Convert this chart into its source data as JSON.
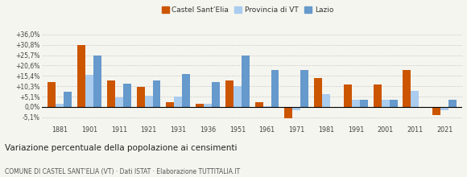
{
  "years": [
    "1881",
    "1901",
    "1911",
    "1921",
    "1931",
    "1936",
    "1951",
    "1961",
    "1971",
    "1981",
    "1991",
    "2001",
    "2011",
    "2021"
  ],
  "castel": [
    12.5,
    30.8,
    13.0,
    9.8,
    2.2,
    1.5,
    13.0,
    2.5,
    -5.6,
    14.2,
    11.0,
    11.0,
    18.5,
    -4.2
  ],
  "provincia": [
    1.5,
    16.0,
    4.8,
    5.5,
    5.3,
    1.5,
    10.3,
    0.5,
    -1.5,
    6.5,
    3.5,
    3.5,
    8.0,
    -1.5
  ],
  "lazio": [
    7.5,
    25.7,
    11.5,
    13.0,
    16.5,
    12.5,
    25.7,
    18.5,
    18.2,
    0.0,
    3.5,
    3.5,
    0.0,
    3.5
  ],
  "color_castel": "#cc5500",
  "color_provincia": "#aaccee",
  "color_lazio": "#6699cc",
  "yticks": [
    -5.1,
    0.0,
    5.1,
    10.3,
    15.4,
    20.6,
    25.7,
    30.8,
    36.0
  ],
  "ytick_labels": [
    "-5,1%",
    "0,0%",
    "+5,1%",
    "+10,3%",
    "+15,4%",
    "+20,6%",
    "+25,7%",
    "+30,8%",
    "+36,0%"
  ],
  "ylim": [
    -8.5,
    40.0
  ],
  "title": "Variazione percentuale della popolazione ai censimenti",
  "subtitle": "COMUNE DI CASTEL SANT’ELIA (VT) · Dati ISTAT · Elaborazione TUTTITALIA.IT",
  "legend_labels": [
    "Castel Sant’Elia",
    "Provincia di VT",
    "Lazio"
  ],
  "background_color": "#f5f5ef"
}
